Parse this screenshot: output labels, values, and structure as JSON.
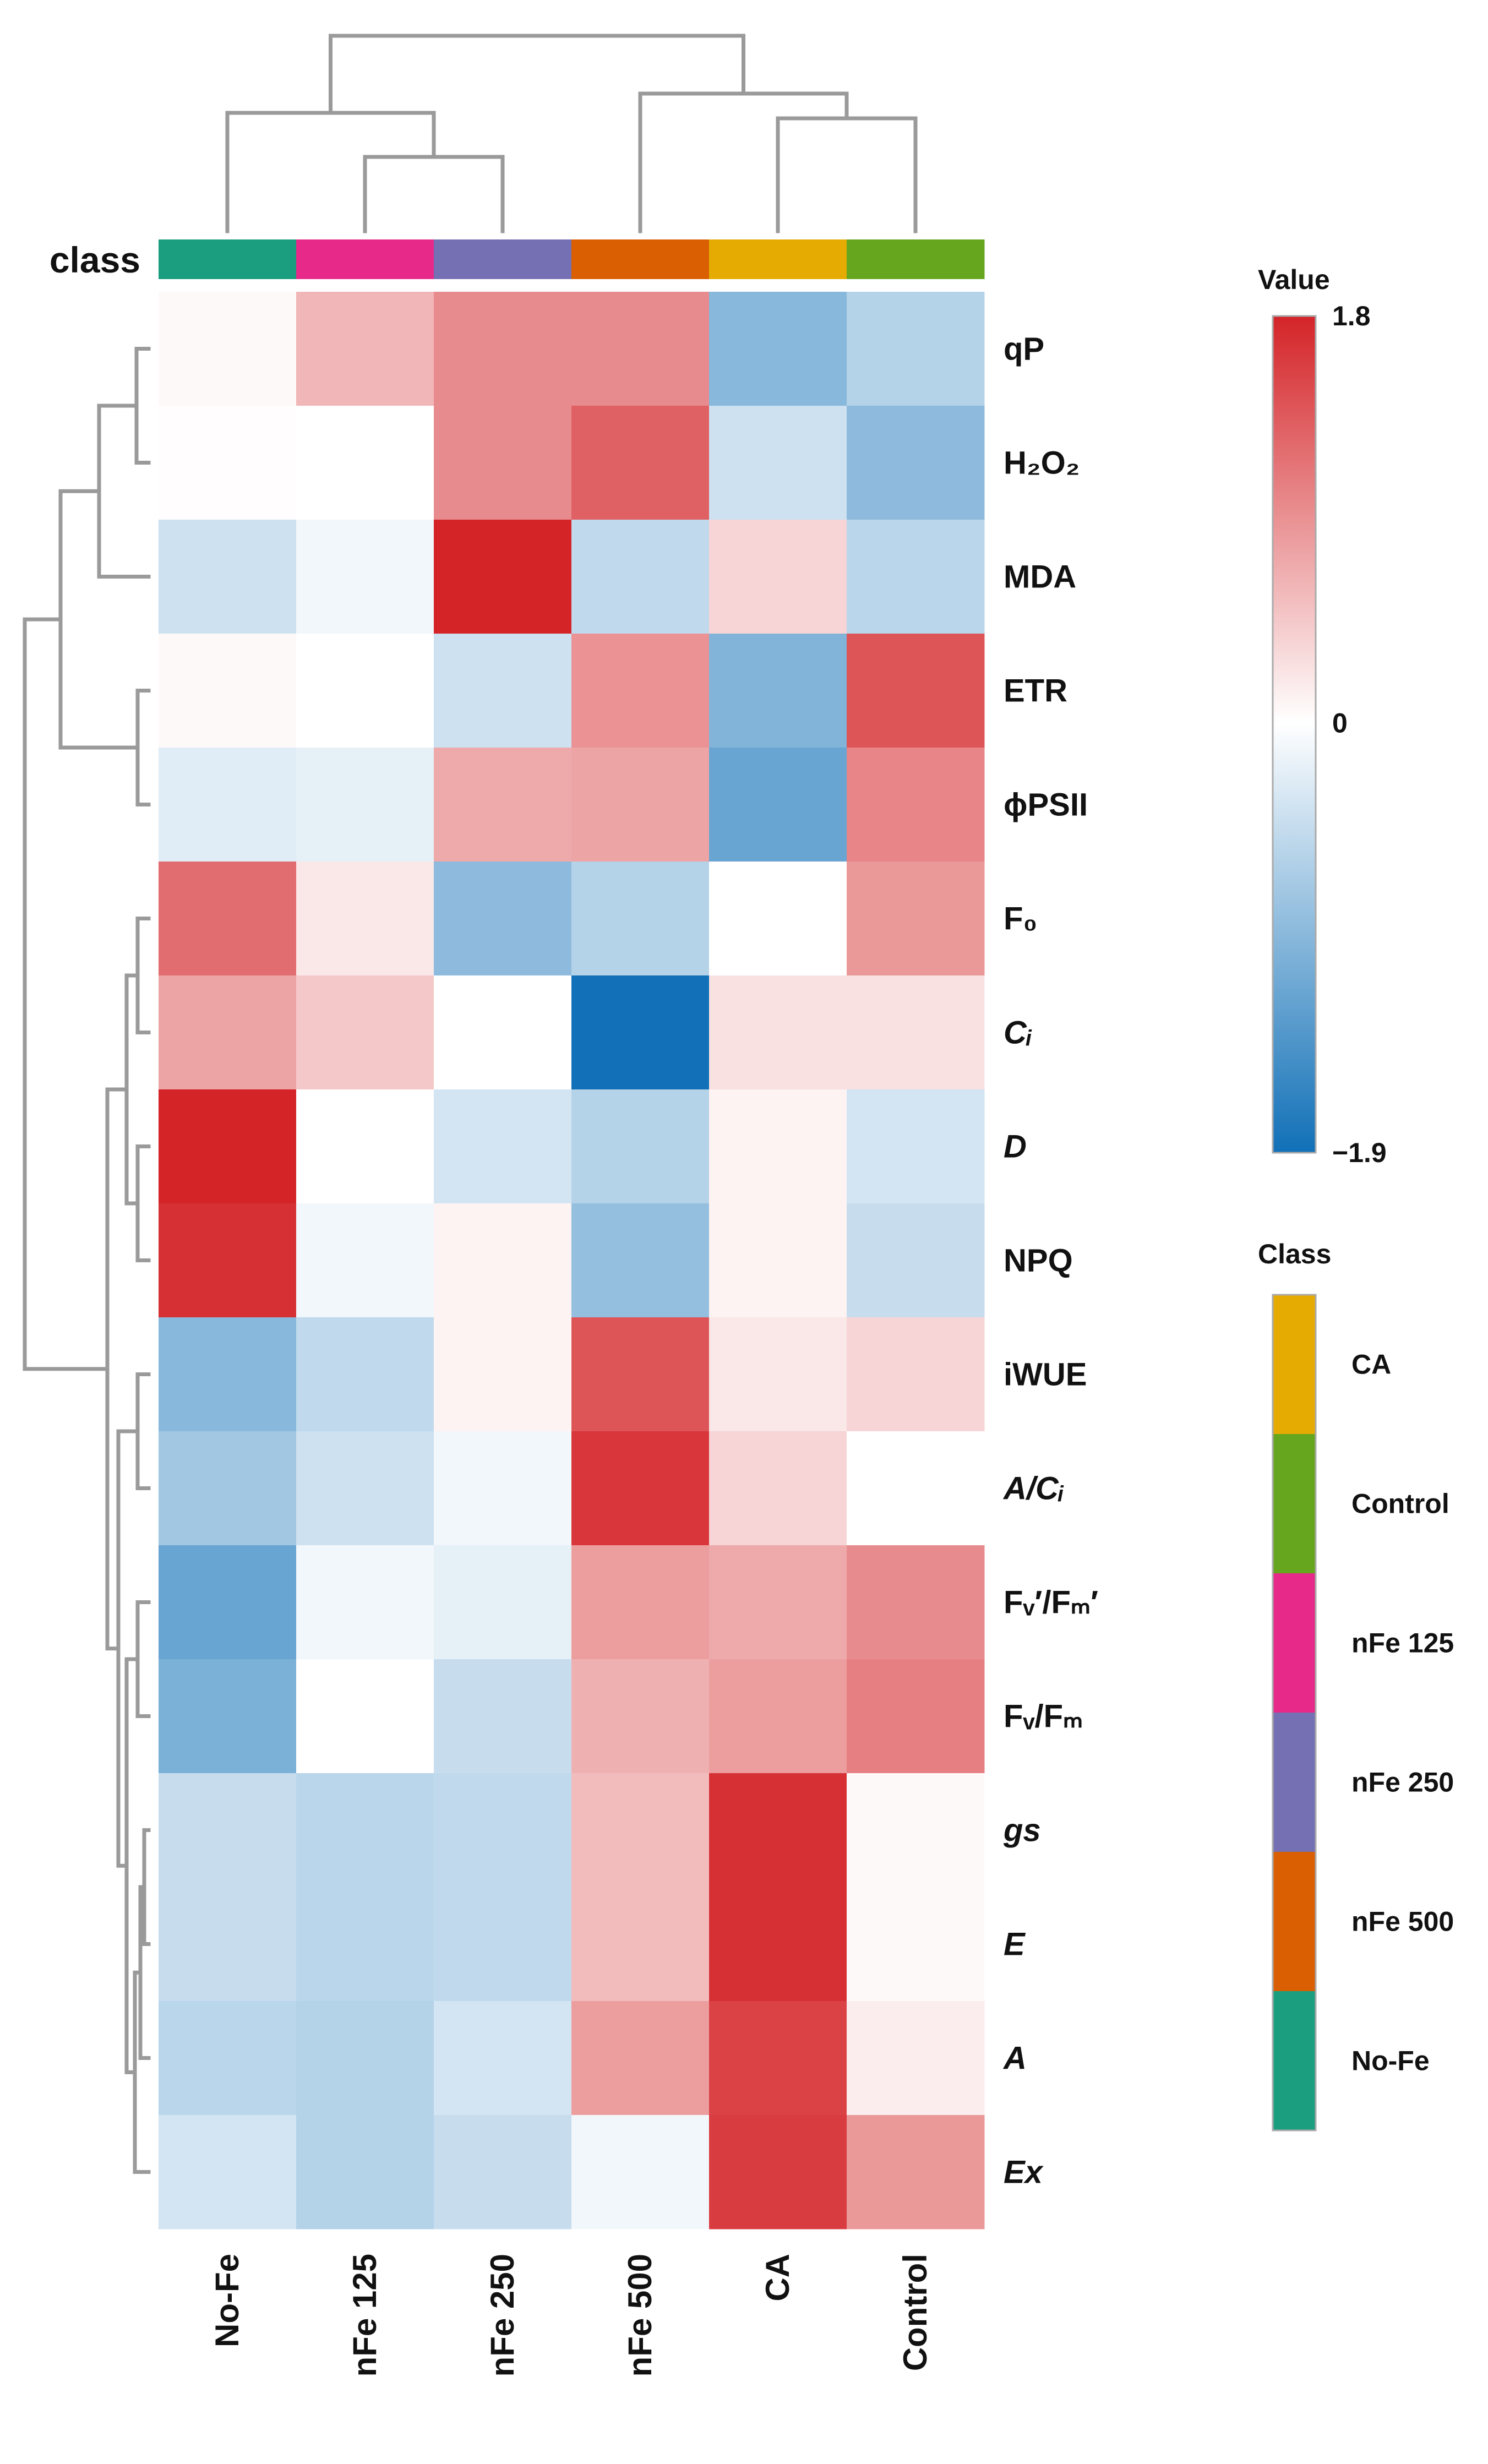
{
  "chart_data": {
    "type": "heatmap",
    "title": "",
    "class_label": "class",
    "columns": [
      "No-Fe",
      "nFe 125",
      "nFe 250",
      "nFe 500",
      "CA",
      "Control"
    ],
    "column_class_colors": [
      "#1b9e7f",
      "#e7298a",
      "#7570b3",
      "#d95f02",
      "#e6ab02",
      "#66a61e"
    ],
    "rows": [
      {
        "label": "qP",
        "italic": false
      },
      {
        "label": "H₂O₂",
        "italic": false
      },
      {
        "label": "MDA",
        "italic": false
      },
      {
        "label": "ETR",
        "italic": false
      },
      {
        "label": "ϕPSII",
        "italic": false
      },
      {
        "label": "F₀",
        "italic": false
      },
      {
        "label": "Cᵢ",
        "italic": true
      },
      {
        "label": "D",
        "italic": true
      },
      {
        "label": "NPQ",
        "italic": false
      },
      {
        "label": "iWUE",
        "italic": false
      },
      {
        "label": "A/Cᵢ",
        "italic": true
      },
      {
        "label": "Fᵥ′/Fₘ′",
        "italic": false
      },
      {
        "label": "Fᵥ/Fₘ",
        "italic": false
      },
      {
        "label": "gs",
        "italic": true
      },
      {
        "label": "E",
        "italic": true
      },
      {
        "label": "A",
        "italic": true
      },
      {
        "label": "Ex",
        "italic": true
      }
    ],
    "values": [
      [
        0.05,
        0.6,
        0.95,
        0.95,
        -0.95,
        -0.6
      ],
      [
        0.02,
        0.0,
        0.95,
        1.3,
        -0.4,
        -0.9
      ],
      [
        -0.4,
        -0.1,
        1.8,
        -0.5,
        0.35,
        -0.55
      ],
      [
        0.05,
        0.0,
        -0.4,
        0.9,
        -1.0,
        1.4
      ],
      [
        -0.25,
        -0.2,
        0.7,
        0.75,
        -1.2,
        1.0
      ],
      [
        1.2,
        0.2,
        -0.9,
        -0.6,
        0.0,
        0.85
      ],
      [
        0.75,
        0.45,
        0.0,
        -1.9,
        0.25,
        0.25
      ],
      [
        1.8,
        0.0,
        -0.35,
        -0.6,
        0.1,
        -0.35
      ],
      [
        1.7,
        -0.1,
        0.1,
        -0.85,
        0.1,
        -0.45
      ],
      [
        -0.95,
        -0.5,
        0.1,
        1.4,
        0.2,
        0.35
      ],
      [
        -0.75,
        -0.4,
        -0.1,
        1.65,
        0.35,
        0.0
      ],
      [
        -1.2,
        -0.1,
        -0.2,
        0.8,
        0.7,
        0.95
      ],
      [
        -1.05,
        0.0,
        -0.45,
        0.65,
        0.8,
        1.05
      ],
      [
        -0.45,
        -0.55,
        -0.5,
        0.55,
        1.7,
        0.05
      ],
      [
        -0.45,
        -0.55,
        -0.5,
        0.55,
        1.7,
        0.05
      ],
      [
        -0.55,
        -0.6,
        -0.35,
        0.8,
        1.55,
        0.15
      ],
      [
        -0.35,
        -0.6,
        -0.45,
        -0.1,
        1.6,
        0.85
      ]
    ],
    "color_scale": {
      "title": "Value",
      "min": -1.9,
      "max": 1.8,
      "ticks": [
        {
          "value": 1.8,
          "label": "1.8"
        },
        {
          "value": 0,
          "label": "0"
        },
        {
          "value": -1.9,
          "label": "−1.9"
        }
      ],
      "low_color": "#1170b7",
      "mid_color": "#ffffff",
      "high_color": "#d42428"
    },
    "class_legend": {
      "title": "Class",
      "entries": [
        {
          "label": "CA",
          "color": "#e6ab02"
        },
        {
          "label": "Control",
          "color": "#66a61e"
        },
        {
          "label": "nFe 125",
          "color": "#e7298a"
        },
        {
          "label": "nFe 250",
          "color": "#7570b3"
        },
        {
          "label": "nFe 500",
          "color": "#d95f02"
        },
        {
          "label": "No-Fe",
          "color": "#1b9e7f"
        }
      ]
    },
    "column_dendrogram": "((No-Fe,(nFe 125,nFe 250)),(nFe 500,(CA,Control)))",
    "row_dendrogram": "((((qP,H2O2),MDA),(ETR,phiPSII)),(((F0,Ci),(D,NPQ)),((iWUE,A/Ci),((Fv'/Fm',Fv/Fm),(((gs,E),A),Ex)))))"
  }
}
